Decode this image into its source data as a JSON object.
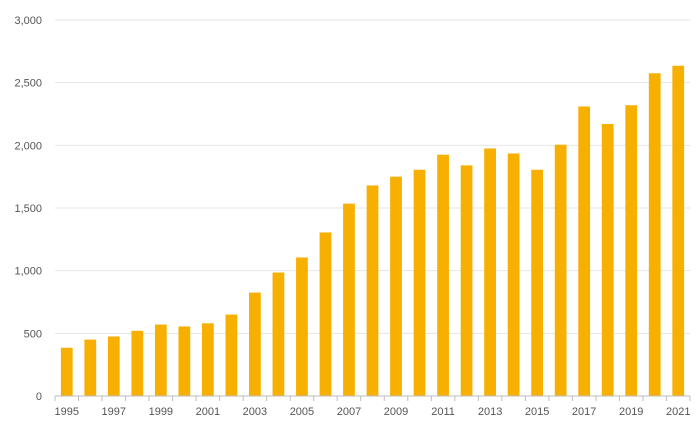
{
  "chart_data": {
    "type": "bar",
    "title": "",
    "xlabel": "",
    "ylabel": "",
    "categories": [
      "1995",
      "1996",
      "1997",
      "1998",
      "1999",
      "2000",
      "2001",
      "2002",
      "2003",
      "2004",
      "2005",
      "2006",
      "2007",
      "2008",
      "2009",
      "2010",
      "2011",
      "2012",
      "2013",
      "2014",
      "2015",
      "2016",
      "2017",
      "2018",
      "2019",
      "2020",
      "2021"
    ],
    "x_tick_labels": [
      "1995",
      "1997",
      "1999",
      "2001",
      "2003",
      "2005",
      "2007",
      "2009",
      "2011",
      "2013",
      "2015",
      "2017",
      "2019",
      "2021"
    ],
    "values": [
      385,
      450,
      475,
      520,
      570,
      555,
      580,
      650,
      825,
      985,
      1105,
      1305,
      1535,
      1680,
      1750,
      1805,
      1925,
      1840,
      1975,
      1935,
      1805,
      2005,
      2310,
      2170,
      2320,
      2575,
      2635
    ],
    "ylim": [
      0,
      3000
    ],
    "y_ticks": [
      0,
      500,
      1000,
      1500,
      2000,
      2500,
      3000
    ],
    "y_tick_labels": [
      "0",
      "500",
      "1,000",
      "1,500",
      "2,000",
      "2,500",
      "3,000"
    ],
    "grid": true,
    "legend": "none",
    "colors": {
      "bar": "#f7b000",
      "grid": "#e4e4e4",
      "axis": "#bdbdbd",
      "text": "#555555"
    }
  }
}
